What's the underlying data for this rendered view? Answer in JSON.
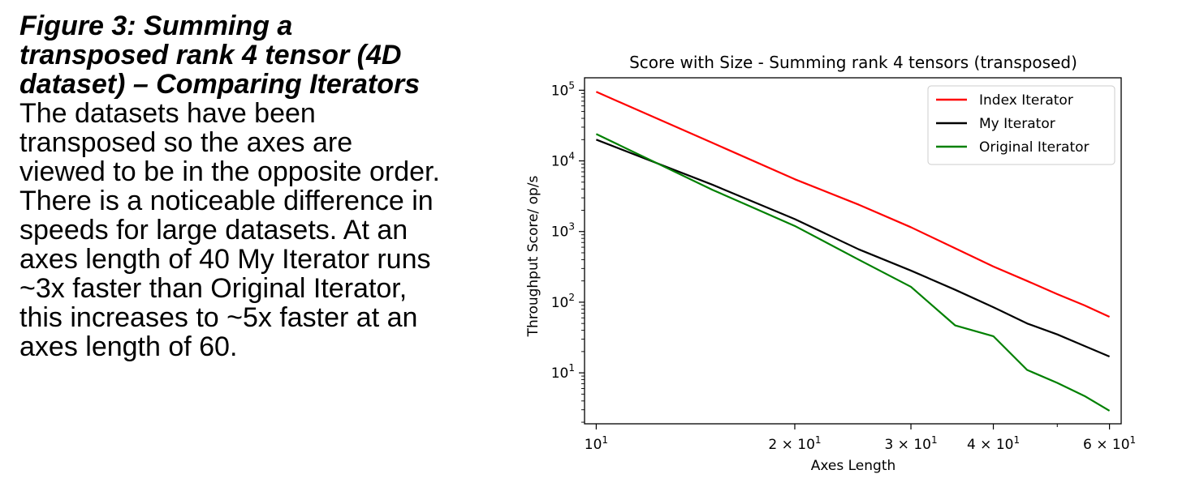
{
  "figure": {
    "title_lines": [
      "Figure 3: Summing a",
      "transposed rank 4 tensor (4D",
      "dataset) – Comparing Iterators"
    ],
    "body_lines": [
      "The datasets have been",
      "transposed so the axes are",
      "viewed to be in the opposite order.",
      "There is a noticeable difference in",
      "speeds for large datasets. At an",
      "axes length of 40 My Iterator runs",
      "~3x faster than Original Iterator,",
      "this increases to ~5x faster at an",
      "axes length of 60."
    ]
  },
  "chart_data": {
    "type": "line",
    "title": "Score with Size - Summing rank 4 tensors (transposed)",
    "xlabel": "Axes Length",
    "ylabel": "Throughput Score/ op/s",
    "xscale": "log",
    "yscale": "log",
    "xlim": [
      9.6,
      62.5
    ],
    "ylim": [
      1.9,
      150000
    ],
    "x_ticks": [
      {
        "value": 10,
        "base": "10",
        "exp": "1",
        "coef": ""
      },
      {
        "value": 20,
        "base": "10",
        "exp": "1",
        "coef": "2 × "
      },
      {
        "value": 30,
        "base": "10",
        "exp": "1",
        "coef": "3 × "
      },
      {
        "value": 40,
        "base": "10",
        "exp": "1",
        "coef": "4 × "
      },
      {
        "value": 60,
        "base": "10",
        "exp": "1",
        "coef": "6 × "
      }
    ],
    "y_ticks": [
      {
        "value": 10,
        "base": "10",
        "exp": "1"
      },
      {
        "value": 100,
        "base": "10",
        "exp": "2"
      },
      {
        "value": 1000,
        "base": "10",
        "exp": "3"
      },
      {
        "value": 10000,
        "base": "10",
        "exp": "4"
      },
      {
        "value": 100000,
        "base": "10",
        "exp": "5"
      }
    ],
    "legend_position": "top-right",
    "grid": false,
    "x": [
      10,
      15,
      20,
      25,
      30,
      35,
      40,
      45,
      50,
      55,
      60
    ],
    "series": [
      {
        "name": "Index Iterator",
        "color": "#ff0000",
        "values": [
          95000,
          18000,
          5500,
          2400,
          1150,
          580,
          320,
          200,
          130,
          90,
          62
        ]
      },
      {
        "name": "My Iterator",
        "color": "#000000",
        "values": [
          20000,
          4600,
          1500,
          560,
          280,
          150,
          85,
          50,
          35,
          24,
          17
        ]
      },
      {
        "name": "Original Iterator",
        "color": "#008000",
        "values": [
          24000,
          3900,
          1200,
          400,
          165,
          47,
          33,
          11,
          7.2,
          4.7,
          2.9
        ]
      }
    ]
  }
}
